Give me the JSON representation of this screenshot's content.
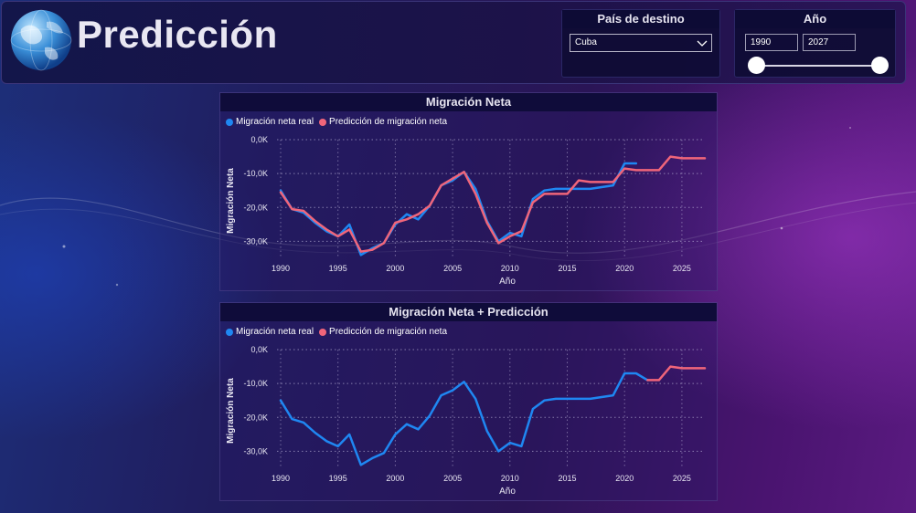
{
  "header": {
    "title": "Predicción"
  },
  "filters": {
    "country": {
      "title": "País de destino",
      "value": "Cuba"
    },
    "year": {
      "title": "Año",
      "from": "1990",
      "to": "2027"
    }
  },
  "colors": {
    "real": "#1f87f2",
    "prediction": "#f0657a"
  },
  "chart_data": [
    {
      "type": "line",
      "title": "Migración Neta",
      "xlabel": "Año",
      "ylabel": "Migración Neta",
      "ylim": [
        -35000,
        0
      ],
      "yticks": [
        0,
        -10000,
        -20000,
        -30000
      ],
      "ytick_labels": [
        "0,0K",
        "-10,0K",
        "-20,0K",
        "-30,0K"
      ],
      "xticks": [
        1990,
        1995,
        2000,
        2005,
        2010,
        2015,
        2020,
        2025
      ],
      "xlim": [
        1990,
        2027
      ],
      "legend": "top-left",
      "grid": true,
      "series": [
        {
          "name": "Migración neta real",
          "x": [
            1990,
            1991,
            1992,
            1993,
            1994,
            1995,
            1996,
            1997,
            1998,
            1999,
            2000,
            2001,
            2002,
            2003,
            2004,
            2005,
            2006,
            2007,
            2008,
            2009,
            2010,
            2011,
            2012,
            2013,
            2014,
            2015,
            2016,
            2017,
            2018,
            2019,
            2020,
            2021
          ],
          "values": [
            -15000,
            -20500,
            -21500,
            -24500,
            -27000,
            -28500,
            -25000,
            -34000,
            -32000,
            -30500,
            -25000,
            -22000,
            -23500,
            -19500,
            -13500,
            -12000,
            -9500,
            -14500,
            -24000,
            -30000,
            -27500,
            -28500,
            -17500,
            -15000,
            -14500,
            -14500,
            -14500,
            -14500,
            -14000,
            -13500,
            -7000,
            -7000
          ]
        },
        {
          "name": "Predicción de migración neta",
          "x": [
            1990,
            1991,
            1992,
            1993,
            1994,
            1995,
            1996,
            1997,
            1998,
            1999,
            2000,
            2001,
            2002,
            2003,
            2004,
            2005,
            2006,
            2007,
            2008,
            2009,
            2010,
            2011,
            2012,
            2013,
            2014,
            2015,
            2016,
            2017,
            2018,
            2019,
            2020,
            2021,
            2022,
            2023,
            2024,
            2025,
            2026,
            2027
          ],
          "values": [
            -15500,
            -20500,
            -21000,
            -24000,
            -26500,
            -28500,
            -26500,
            -33000,
            -32500,
            -30500,
            -24500,
            -23500,
            -22000,
            -19500,
            -13500,
            -11500,
            -9500,
            -16000,
            -24500,
            -30500,
            -28500,
            -27000,
            -18500,
            -16000,
            -16000,
            -16000,
            -12000,
            -12500,
            -12500,
            -12500,
            -8500,
            -9000,
            -9000,
            -9000,
            -5000,
            -5500,
            -5500,
            -5500
          ]
        }
      ]
    },
    {
      "type": "line",
      "title": "Migración Neta + Predicción",
      "xlabel": "Año",
      "ylabel": "Migración Neta",
      "ylim": [
        -35000,
        0
      ],
      "yticks": [
        0,
        -10000,
        -20000,
        -30000
      ],
      "ytick_labels": [
        "0,0K",
        "-10,0K",
        "-20,0K",
        "-30,0K"
      ],
      "xticks": [
        1990,
        1995,
        2000,
        2005,
        2010,
        2015,
        2020,
        2025
      ],
      "xlim": [
        1990,
        2027
      ],
      "legend": "top-left",
      "grid": true,
      "series": [
        {
          "name": "Migración neta real",
          "x": [
            1990,
            1991,
            1992,
            1993,
            1994,
            1995,
            1996,
            1997,
            1998,
            1999,
            2000,
            2001,
            2002,
            2003,
            2004,
            2005,
            2006,
            2007,
            2008,
            2009,
            2010,
            2011,
            2012,
            2013,
            2014,
            2015,
            2016,
            2017,
            2018,
            2019,
            2020,
            2021,
            2022
          ],
          "values": [
            -15000,
            -20500,
            -21500,
            -24500,
            -27000,
            -28500,
            -25000,
            -34000,
            -32000,
            -30500,
            -25000,
            -22000,
            -23500,
            -19500,
            -13500,
            -12000,
            -9500,
            -14500,
            -24000,
            -30000,
            -27500,
            -28500,
            -17500,
            -15000,
            -14500,
            -14500,
            -14500,
            -14500,
            -14000,
            -13500,
            -7000,
            -7000,
            -9000
          ]
        },
        {
          "name": "Predicción de migración neta",
          "x": [
            2022,
            2023,
            2024,
            2025,
            2026,
            2027
          ],
          "values": [
            -9000,
            -9000,
            -5000,
            -5500,
            -5500,
            -5500
          ]
        }
      ]
    }
  ]
}
